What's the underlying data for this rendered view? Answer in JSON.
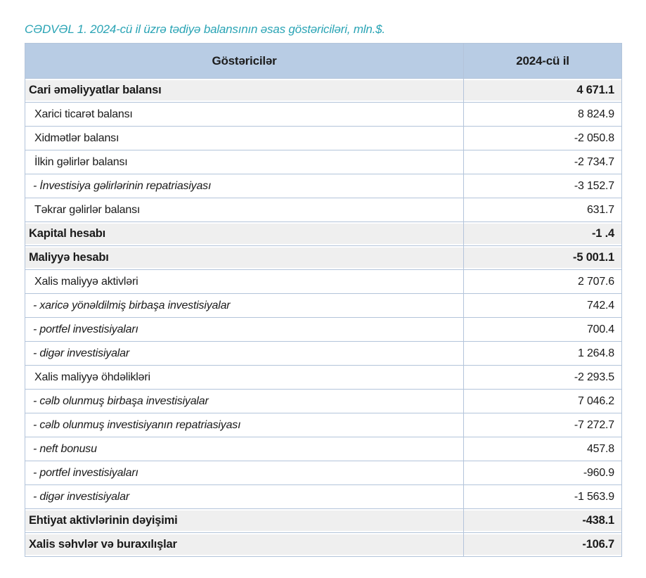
{
  "title": "CƏDVƏL 1. 2024-cü il üzrə tədiyə balansının əsas göstəriciləri, mln.$.",
  "colors": {
    "title_teal": "#2aa4b5",
    "header_bg": "#b8cce4",
    "section_row_bg": "#efefef",
    "border": "#b3c4da"
  },
  "table": {
    "columns": [
      "Göstəricilər",
      "2024-cü il"
    ],
    "rows": [
      {
        "label": "Cari əməliyyatlar balansı",
        "value": "4 671.1",
        "style": "section"
      },
      {
        "label": "Xarici ticarət balansı",
        "value": "8 824.9",
        "style": "item"
      },
      {
        "label": "Xidmətlər balansı",
        "value": "-2 050.8",
        "style": "item"
      },
      {
        "label": "İlkin gəlirlər balansı",
        "value": "-2 734.7",
        "style": "item"
      },
      {
        "label": "- İnvestisiya gəlirlərinin repatriasiyası",
        "value": "-3 152.7",
        "style": "sub"
      },
      {
        "label": "Təkrar gəlirlər balansı",
        "value": "631.7",
        "style": "item"
      },
      {
        "label": "Kapital hesabı",
        "value": "-1 .4",
        "style": "section"
      },
      {
        "label": "Maliyyə hesabı",
        "value": "-5 001.1",
        "style": "section"
      },
      {
        "label": "Xalis maliyyə aktivləri",
        "value": "2 707.6",
        "style": "item"
      },
      {
        "label": "- xaricə yönəldilmiş birbaşa investisiyalar",
        "value": "742.4",
        "style": "sub"
      },
      {
        "label": "- portfel investisiyaları",
        "value": "700.4",
        "style": "sub"
      },
      {
        "label": "- digər investisiyalar",
        "value": "1 264.8",
        "style": "sub"
      },
      {
        "label": "Xalis maliyyə öhdəlikləri",
        "value": "-2 293.5",
        "style": "item"
      },
      {
        "label": "- cəlb olunmuş birbaşa investisiyalar",
        "value": "7 046.2",
        "style": "sub"
      },
      {
        "label": "- cəlb olunmuş investisiyanın repatriasiyası",
        "value": "-7 272.7",
        "style": "sub"
      },
      {
        "label": "- neft bonusu",
        "value": "457.8",
        "style": "sub"
      },
      {
        "label": "- portfel investisiyaları",
        "value": "-960.9",
        "style": "sub"
      },
      {
        "label": "- digər investisiyalar",
        "value": "-1 563.9",
        "style": "sub"
      },
      {
        "label": "Ehtiyat aktivlərinin dəyişimi",
        "value": "-438.1",
        "style": "section"
      },
      {
        "label": "Xalis səhvlər və buraxılışlar",
        "value": "-106.7",
        "style": "section"
      }
    ]
  }
}
